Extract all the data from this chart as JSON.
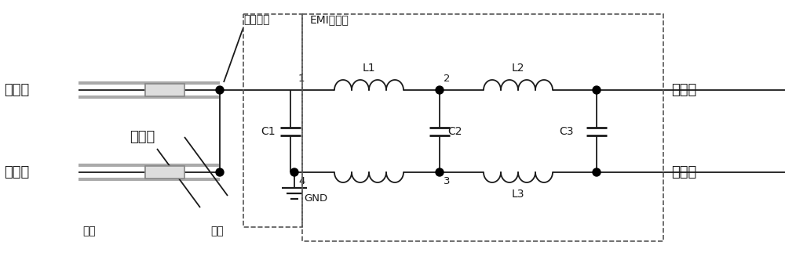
{
  "bg_color": "#ffffff",
  "line_color": "#1a1a1a",
  "lw": 1.3,
  "labels": {
    "input_pos": "输入正",
    "input_gnd": "输入地",
    "output_pos": "输出正",
    "output_gnd": "输出地",
    "shield": "屏蔽层",
    "front_end": "前端",
    "rear_end": "末端",
    "metal_shell": "金属外壳",
    "emi_filter": "EMI滤波器",
    "C1": "C1",
    "C2": "C2",
    "C3": "C3",
    "L1": "L1",
    "L2": "L2",
    "L3": "L3",
    "GND": "GND",
    "n1": "1",
    "n2": "2",
    "n3": "3",
    "n4": "4"
  }
}
